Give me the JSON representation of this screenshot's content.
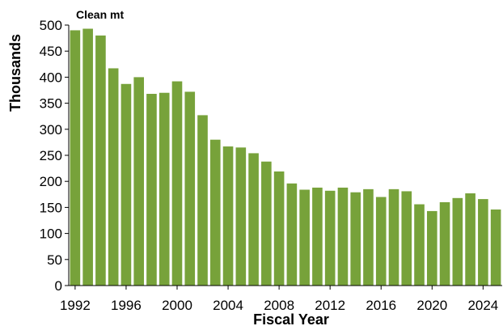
{
  "chart_data": {
    "type": "bar",
    "title": "",
    "unit_note": "Clean mt",
    "xlabel": "Fiscal Year",
    "ylabel": "Thousands",
    "ylim": [
      0,
      500
    ],
    "yticks": [
      0,
      50,
      100,
      150,
      200,
      250,
      300,
      350,
      400,
      450,
      500
    ],
    "xtick_labels": [
      "1992",
      "1996",
      "2000",
      "2004",
      "2008",
      "2012",
      "2016",
      "2020",
      "2024"
    ],
    "bar_color": "#77a23a",
    "grid": false,
    "legend": "none",
    "categories": [
      "1992",
      "1993",
      "1994",
      "1995",
      "1996",
      "1997",
      "1998",
      "1999",
      "2000",
      "2001",
      "2002",
      "2003",
      "2004",
      "2005",
      "2006",
      "2007",
      "2008",
      "2009",
      "2010",
      "2011",
      "2012",
      "2013",
      "2014",
      "2015",
      "2016",
      "2017",
      "2018",
      "2019",
      "2020",
      "2021",
      "2022",
      "2023",
      "2024",
      "2025"
    ],
    "values": [
      490,
      493,
      480,
      417,
      387,
      400,
      368,
      370,
      392,
      372,
      327,
      280,
      267,
      265,
      254,
      238,
      219,
      196,
      184,
      188,
      182,
      188,
      179,
      185,
      170,
      185,
      181,
      156,
      143,
      160,
      168,
      177,
      166,
      146
    ]
  }
}
